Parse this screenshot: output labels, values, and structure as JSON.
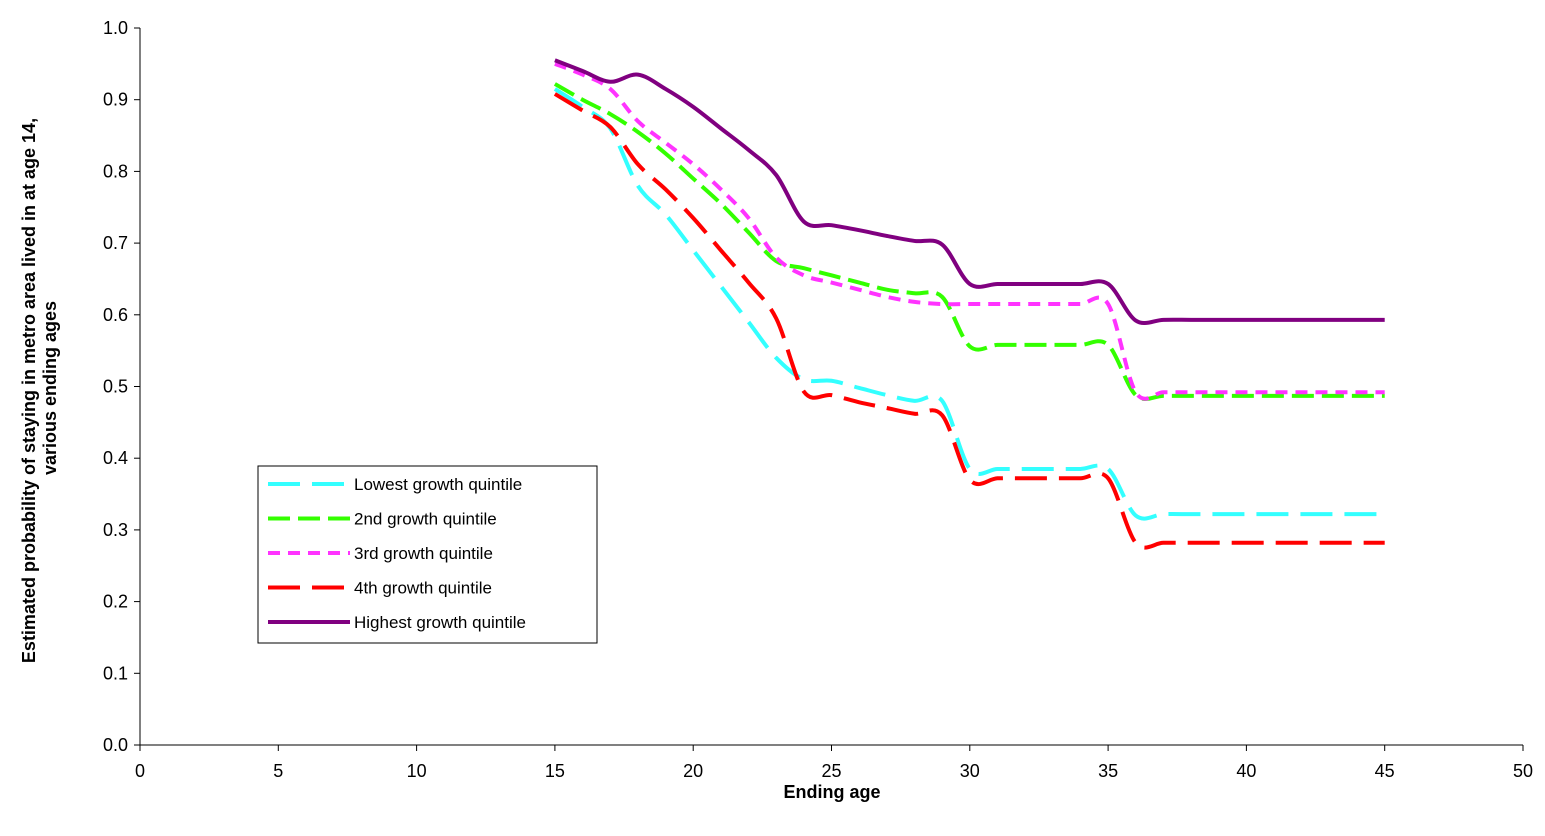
{
  "chart_data": {
    "type": "line",
    "title": "",
    "xlabel": "Ending age",
    "ylabel": {
      "line1": "Estimated probability of staying in metro area lived in at age 14,",
      "line2": "various ending ages"
    },
    "xlim": [
      0,
      50
    ],
    "ylim": [
      0.0,
      1.0
    ],
    "x_ticks": [
      "0",
      "5",
      "10",
      "15",
      "20",
      "25",
      "30",
      "35",
      "40",
      "45",
      "50"
    ],
    "y_ticks": [
      "0.0",
      "0.1",
      "0.2",
      "0.3",
      "0.4",
      "0.5",
      "0.6",
      "0.7",
      "0.8",
      "0.9",
      "1.0"
    ],
    "grid": false,
    "legend_position": "lower-left",
    "x": [
      15,
      16,
      17,
      18,
      19,
      20,
      21,
      22,
      23,
      24,
      25,
      26,
      27,
      28,
      29,
      30,
      31,
      32,
      33,
      34,
      35,
      36,
      37,
      38,
      39,
      40,
      41,
      42,
      43,
      44,
      45
    ],
    "series": [
      {
        "name": "Lowest growth quintile",
        "color": "#33ffff",
        "dash": "long-dash",
        "values": [
          0.915,
          0.89,
          0.86,
          0.78,
          0.74,
          0.69,
          0.64,
          0.59,
          0.54,
          0.51,
          0.508,
          0.498,
          0.488,
          0.48,
          0.48,
          0.385,
          0.385,
          0.385,
          0.385,
          0.385,
          0.385,
          0.32,
          0.322,
          0.322,
          0.322,
          0.322,
          0.322,
          0.322,
          0.322,
          0.322,
          0.322
        ]
      },
      {
        "name": "2nd growth quintile",
        "color": "#33ff00",
        "dash": "dash",
        "values": [
          0.922,
          0.9,
          0.88,
          0.855,
          0.825,
          0.79,
          0.755,
          0.715,
          0.675,
          0.665,
          0.655,
          0.645,
          0.635,
          0.63,
          0.625,
          0.556,
          0.558,
          0.558,
          0.558,
          0.558,
          0.558,
          0.488,
          0.487,
          0.487,
          0.487,
          0.487,
          0.487,
          0.487,
          0.487,
          0.487,
          0.487
        ]
      },
      {
        "name": "3rd growth quintile",
        "color": "#ff33ff",
        "dash": "short-dash",
        "values": [
          0.95,
          0.935,
          0.915,
          0.87,
          0.84,
          0.81,
          0.775,
          0.735,
          0.68,
          0.655,
          0.645,
          0.635,
          0.625,
          0.618,
          0.615,
          0.615,
          0.615,
          0.615,
          0.615,
          0.615,
          0.615,
          0.492,
          0.492,
          0.492,
          0.492,
          0.492,
          0.492,
          0.492,
          0.492,
          0.492,
          0.492
        ]
      },
      {
        "name": "4th growth quintile",
        "color": "#ff0000",
        "dash": "long-dash",
        "values": [
          0.908,
          0.885,
          0.862,
          0.81,
          0.775,
          0.735,
          0.69,
          0.645,
          0.595,
          0.493,
          0.488,
          0.478,
          0.47,
          0.462,
          0.46,
          0.37,
          0.372,
          0.372,
          0.372,
          0.372,
          0.372,
          0.282,
          0.282,
          0.282,
          0.282,
          0.282,
          0.282,
          0.282,
          0.282,
          0.282,
          0.282
        ]
      },
      {
        "name": "Highest growth quintile",
        "color": "#800080",
        "dash": "solid",
        "values": [
          0.955,
          0.94,
          0.925,
          0.935,
          0.915,
          0.89,
          0.86,
          0.83,
          0.795,
          0.73,
          0.725,
          0.718,
          0.71,
          0.703,
          0.698,
          0.643,
          0.643,
          0.643,
          0.643,
          0.643,
          0.643,
          0.592,
          0.593,
          0.593,
          0.593,
          0.593,
          0.593,
          0.593,
          0.593,
          0.593,
          0.593
        ]
      }
    ]
  }
}
